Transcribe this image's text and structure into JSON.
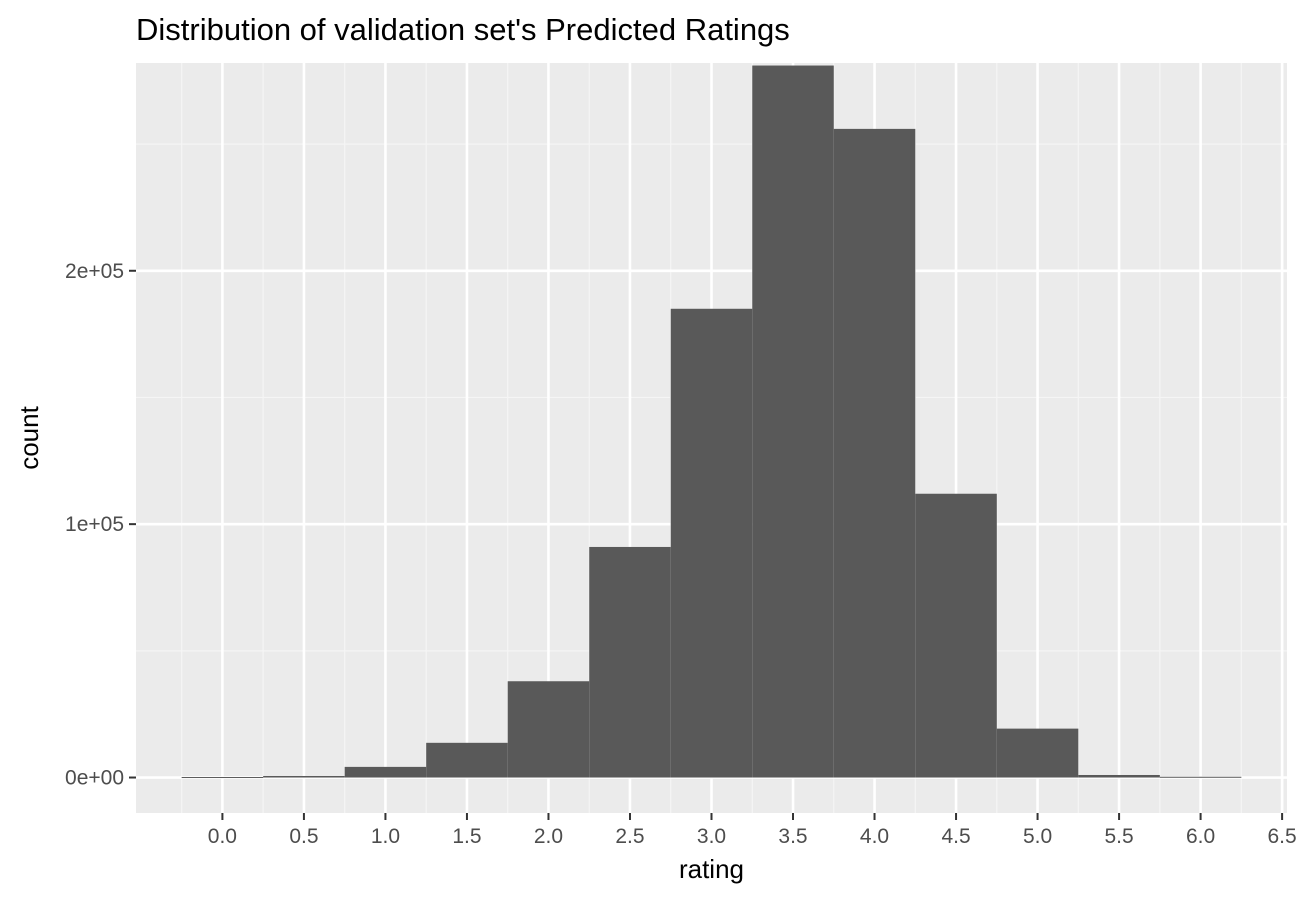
{
  "chart_data": {
    "type": "bar",
    "title": "Distribution of validation set's Predicted Ratings",
    "xlabel": "rating",
    "ylabel": "count",
    "xlim": [
      -0.53,
      6.53
    ],
    "ylim": [
      -14000,
      282000
    ],
    "x_ticks": [
      0.0,
      0.5,
      1.0,
      1.5,
      2.0,
      2.5,
      3.0,
      3.5,
      4.0,
      4.5,
      5.0,
      5.5,
      6.0,
      6.5
    ],
    "x_tick_labels": [
      "0.0",
      "0.5",
      "1.0",
      "1.5",
      "2.0",
      "2.5",
      "3.0",
      "3.5",
      "4.0",
      "4.5",
      "5.0",
      "5.5",
      "6.0",
      "6.5"
    ],
    "y_ticks": [
      0,
      100000,
      200000
    ],
    "y_tick_labels": [
      "0e+00",
      "1e+05",
      "2e+05"
    ],
    "bin_width": 0.5,
    "bins": [
      {
        "center": 0.0,
        "count": 200
      },
      {
        "center": 0.5,
        "count": 600
      },
      {
        "center": 1.0,
        "count": 4200
      },
      {
        "center": 1.5,
        "count": 13700
      },
      {
        "center": 2.0,
        "count": 38000
      },
      {
        "center": 2.5,
        "count": 91000
      },
      {
        "center": 3.0,
        "count": 185000
      },
      {
        "center": 3.5,
        "count": 281000
      },
      {
        "center": 4.0,
        "count": 256000
      },
      {
        "center": 4.5,
        "count": 112000
      },
      {
        "center": 5.0,
        "count": 19300
      },
      {
        "center": 5.5,
        "count": 1000
      },
      {
        "center": 6.0,
        "count": 300
      }
    ],
    "grid": true,
    "legend": "none",
    "colors": {
      "panel_background": "#ebebeb",
      "grid_major": "#ffffff",
      "grid_minor": "#f5f5f5",
      "bar_fill": "#595959",
      "tick_mark": "#333333",
      "tick_label": "#4d4d4d"
    }
  }
}
